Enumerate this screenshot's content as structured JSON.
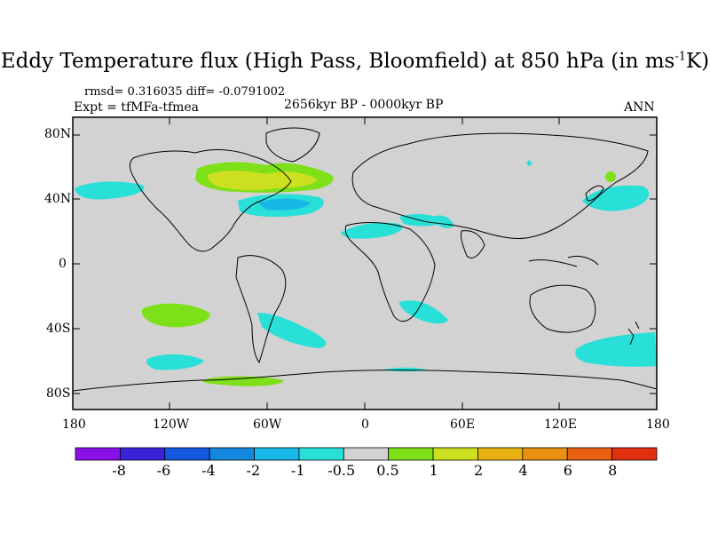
{
  "title": {
    "main": "Eddy Temperature flux (High Pass, Bloomfield) at 850 hPa (in ms",
    "sup": "-1",
    "tail": "K)"
  },
  "stats": "rmsd= 0.316035 diff= -0.0791002",
  "expt": "Expt = tfMFa-tfmea",
  "period": "2656kyr BP - 0000kyr BP",
  "season": "ANN",
  "axes": {
    "lat_labels": [
      "80N",
      "40N",
      "0",
      "40S",
      "80S"
    ],
    "lon_labels": [
      "180",
      "120W",
      "60W",
      "0",
      "60E",
      "120E",
      "180"
    ]
  },
  "colorbar": {
    "labels": [
      "-8",
      "-6",
      "-4",
      "-2",
      "-1",
      "-0.5",
      "0.5",
      "1",
      "2",
      "4",
      "6",
      "8"
    ],
    "colors": [
      "#8a10e8",
      "#3a22d8",
      "#1458e0",
      "#1488e0",
      "#16b8e8",
      "#28e0d8",
      "#d2d2d2",
      "#7ee018",
      "#cce020",
      "#e8b010",
      "#e89010",
      "#e86010",
      "#e03010"
    ]
  },
  "colors": {
    "land_bg": "#d2d2d2",
    "positive": "#7ee018",
    "strong_positive": "#cce020",
    "negative": "#28e0d8"
  }
}
